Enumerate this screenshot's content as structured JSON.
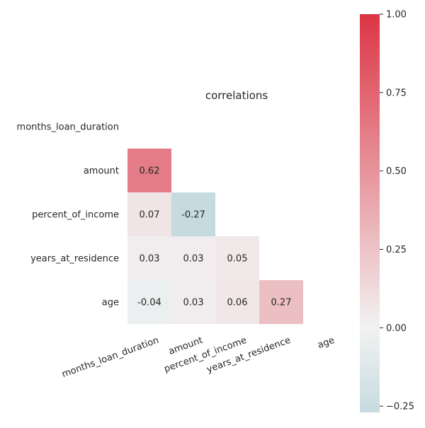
{
  "chart_data": {
    "type": "heatmap",
    "title": "correlations",
    "mask": "upper-triangle-and-diagonal",
    "variables": [
      "months_loan_duration",
      "amount",
      "percent_of_income",
      "years_at_residence",
      "age"
    ],
    "cells": [
      {
        "row": "amount",
        "col": "months_loan_duration",
        "value": 0.62,
        "label": "0.62"
      },
      {
        "row": "percent_of_income",
        "col": "months_loan_duration",
        "value": 0.07,
        "label": "0.07"
      },
      {
        "row": "percent_of_income",
        "col": "amount",
        "value": -0.27,
        "label": "-0.27"
      },
      {
        "row": "years_at_residence",
        "col": "months_loan_duration",
        "value": 0.03,
        "label": "0.03"
      },
      {
        "row": "years_at_residence",
        "col": "amount",
        "value": 0.03,
        "label": "0.03"
      },
      {
        "row": "years_at_residence",
        "col": "percent_of_income",
        "value": 0.05,
        "label": "0.05"
      },
      {
        "row": "age",
        "col": "months_loan_duration",
        "value": -0.04,
        "label": "-0.04"
      },
      {
        "row": "age",
        "col": "amount",
        "value": 0.03,
        "label": "0.03"
      },
      {
        "row": "age",
        "col": "percent_of_income",
        "value": 0.06,
        "label": "0.06"
      },
      {
        "row": "age",
        "col": "years_at_residence",
        "value": 0.27,
        "label": "0.27"
      }
    ],
    "colorbar": {
      "min": -0.27,
      "max": 1.0,
      "center": 0.0,
      "ticks": [
        -0.25,
        0.0,
        0.25,
        0.5,
        0.75,
        1.0
      ],
      "tick_labels": [
        "−0.25",
        "0.00",
        "0.25",
        "0.50",
        "0.75",
        "1.00"
      ],
      "negative_color": "#c6dbe0",
      "center_color": "#f2f2f2",
      "positive_color": "#dc3545"
    },
    "grid": false,
    "legend": "colorbar-right"
  }
}
